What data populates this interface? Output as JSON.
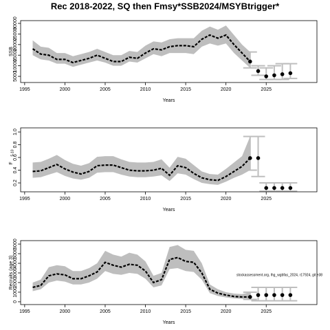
{
  "title": "Rec 2018-2022, SQ then Fmsy*SSB2024/MSYBtrigger*",
  "chart_data": [
    {
      "type": "line",
      "ylabel": "SSB",
      "xlabel": "Years",
      "band_color": "#bebebe",
      "line_color": "#000000",
      "x": [
        1996,
        1997,
        1998,
        1999,
        2000,
        2001,
        2002,
        2003,
        2004,
        2005,
        2006,
        2007,
        2008,
        2009,
        2010,
        2011,
        2012,
        2013,
        2014,
        2015,
        2016,
        2017,
        2018,
        2019,
        2020,
        2021,
        2022,
        2023
      ],
      "values": [
        18000,
        15500,
        15000,
        13000,
        13000,
        11500,
        12500,
        13500,
        15000,
        13500,
        12000,
        12000,
        14000,
        13500,
        16000,
        18000,
        17500,
        19000,
        19500,
        19500,
        19000,
        22500,
        24500,
        23000,
        24500,
        20000,
        16000,
        12000
      ],
      "upper": [
        22000,
        19000,
        18500,
        16000,
        16000,
        14500,
        15500,
        16500,
        18000,
        16500,
        15000,
        15000,
        17000,
        16500,
        19500,
        21500,
        21000,
        22500,
        23000,
        23000,
        23000,
        26500,
        28500,
        27000,
        29000,
        24500,
        20000,
        16500
      ],
      "lower": [
        15000,
        13000,
        12500,
        11000,
        11000,
        9500,
        10500,
        11500,
        12500,
        11500,
        10000,
        10000,
        12000,
        11500,
        13500,
        15500,
        14500,
        16000,
        16000,
        16000,
        15500,
        19000,
        20500,
        19500,
        20500,
        16000,
        12500,
        9000
      ],
      "proj": {
        "x": [
          2023,
          2024,
          2025,
          2026,
          2027,
          2028
        ],
        "values": [
          12000,
          7500,
          5000,
          5500,
          6000,
          6500
        ],
        "lower": [
          9000,
          5500,
          3500,
          3500,
          3500,
          4000
        ],
        "upper": [
          16500,
          10000,
          9000,
          10000,
          11000,
          11000
        ]
      },
      "xlim": [
        1994.5,
        2031.3
      ],
      "xticks": [
        1995,
        2000,
        2005,
        2010,
        2015,
        2020,
        2025
      ],
      "ylim": [
        2100,
        31300
      ],
      "yticks": [
        5000,
        10000,
        15000,
        20000,
        25000,
        30000
      ]
    },
    {
      "type": "line",
      "ylabel": "F",
      "ylabel_sub": "5-10",
      "xlabel": "Years",
      "band_color": "#bebebe",
      "line_color": "#000000",
      "x": [
        1996,
        1997,
        1998,
        1999,
        2000,
        2001,
        2002,
        2003,
        2004,
        2005,
        2006,
        2007,
        2008,
        2009,
        2010,
        2011,
        2012,
        2013,
        2014,
        2015,
        2016,
        2017,
        2018,
        2019,
        2020,
        2021,
        2022,
        2023
      ],
      "values": [
        0.38,
        0.39,
        0.44,
        0.49,
        0.42,
        0.37,
        0.34,
        0.38,
        0.47,
        0.48,
        0.48,
        0.44,
        0.4,
        0.39,
        0.39,
        0.4,
        0.43,
        0.32,
        0.47,
        0.44,
        0.35,
        0.28,
        0.25,
        0.24,
        0.3,
        0.38,
        0.46,
        0.59
      ],
      "upper": [
        0.52,
        0.53,
        0.58,
        0.64,
        0.56,
        0.5,
        0.47,
        0.51,
        0.61,
        0.62,
        0.62,
        0.57,
        0.53,
        0.52,
        0.52,
        0.53,
        0.57,
        0.44,
        0.61,
        0.58,
        0.48,
        0.38,
        0.34,
        0.33,
        0.42,
        0.52,
        0.62,
        0.93
      ],
      "lower": [
        0.28,
        0.29,
        0.33,
        0.37,
        0.31,
        0.27,
        0.25,
        0.28,
        0.36,
        0.37,
        0.37,
        0.33,
        0.3,
        0.29,
        0.29,
        0.3,
        0.32,
        0.23,
        0.35,
        0.33,
        0.26,
        0.2,
        0.18,
        0.17,
        0.22,
        0.28,
        0.33,
        0.4
      ],
      "proj": {
        "x": [
          2023,
          2024,
          2025,
          2026,
          2027,
          2028
        ],
        "values": [
          0.59,
          0.59,
          0.12,
          0.12,
          0.12,
          0.12
        ],
        "lower": [
          0.4,
          0.3,
          0.07,
          0.07,
          0.07,
          0.07
        ],
        "upper": [
          0.93,
          0.93,
          0.2,
          0.2,
          0.2,
          0.2
        ]
      },
      "xlim": [
        1994.5,
        2031.3
      ],
      "xticks": [
        1995,
        2000,
        2005,
        2010,
        2015,
        2020,
        2025
      ],
      "ylim": [
        0.06,
        1.065
      ],
      "yticks": [
        0.2,
        0.4,
        0.6,
        0.8,
        {
          "value": 1,
          "label": "1.0"
        }
      ]
    },
    {
      "type": "line",
      "ylabel": "Recruits (age 3)",
      "xlabel": "Years",
      "band_color": "#bebebe",
      "line_color": "#000000",
      "annotation": "stockassessment.org, lhg_wgbfas_2024, r17924, git e38",
      "x": [
        1996,
        1997,
        1998,
        1999,
        2000,
        2001,
        2002,
        2003,
        2004,
        2005,
        2006,
        2007,
        2008,
        2009,
        2010,
        2011,
        2012,
        2013,
        2014,
        2015,
        2016,
        2017,
        2018,
        2019,
        2020,
        2021,
        2022,
        2023
      ],
      "values": [
        1500,
        1700,
        2700,
        2900,
        2800,
        2400,
        2400,
        2700,
        3100,
        4100,
        3800,
        3600,
        3900,
        3800,
        3200,
        2000,
        2300,
        4400,
        4600,
        4200,
        4100,
        3000,
        1300,
        900,
        700,
        550,
        500,
        500
      ],
      "upper": [
        2000,
        2300,
        3600,
        3800,
        3700,
        3200,
        3200,
        3500,
        4000,
        5300,
        4900,
        4700,
        5100,
        4900,
        4200,
        2700,
        3000,
        5700,
        5900,
        5400,
        5300,
        4000,
        1800,
        1300,
        1000,
        850,
        800,
        1000
      ],
      "lower": [
        1100,
        1300,
        2000,
        2200,
        2100,
        1800,
        1800,
        2000,
        2400,
        3200,
        2900,
        2800,
        3000,
        2900,
        2400,
        1500,
        1700,
        3400,
        3500,
        3200,
        3100,
        2300,
        900,
        600,
        450,
        350,
        300,
        250
      ],
      "proj": {
        "x": [
          2023,
          2024,
          2025,
          2026,
          2027,
          2028
        ],
        "values": [
          500,
          700,
          700,
          700,
          700,
          700
        ],
        "lower": [
          250,
          100,
          100,
          100,
          100,
          100
        ],
        "upper": [
          1000,
          1500,
          1500,
          1500,
          1500,
          1500
        ]
      },
      "xlim": [
        1994.5,
        2031.3
      ],
      "xticks": [
        1995,
        2000,
        2005,
        2010,
        2015,
        2020,
        2025
      ],
      "ylim": [
        -290,
        6360
      ],
      "yticks": [
        0,
        1000,
        2000,
        3000,
        4000,
        5000,
        6000
      ]
    }
  ]
}
